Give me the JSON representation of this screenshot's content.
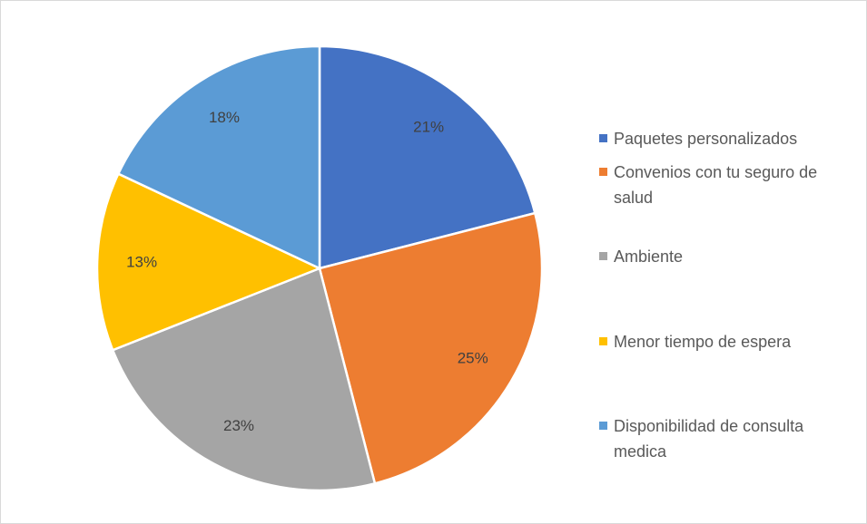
{
  "chart_data": {
    "type": "pie",
    "categories": [
      "Paquetes personalizados",
      "Convenios con tu seguro de salud",
      "Ambiente",
      "Menor tiempo de espera",
      "Disponibilidad de consulta medica"
    ],
    "values": [
      21,
      25,
      23,
      13,
      18
    ],
    "value_labels": [
      "21%",
      "25%",
      "23%",
      "13%",
      "18%"
    ],
    "colors": [
      "#4472c4",
      "#ed7d31",
      "#a5a5a5",
      "#ffc000",
      "#5b9bd5"
    ],
    "legend": "right"
  }
}
